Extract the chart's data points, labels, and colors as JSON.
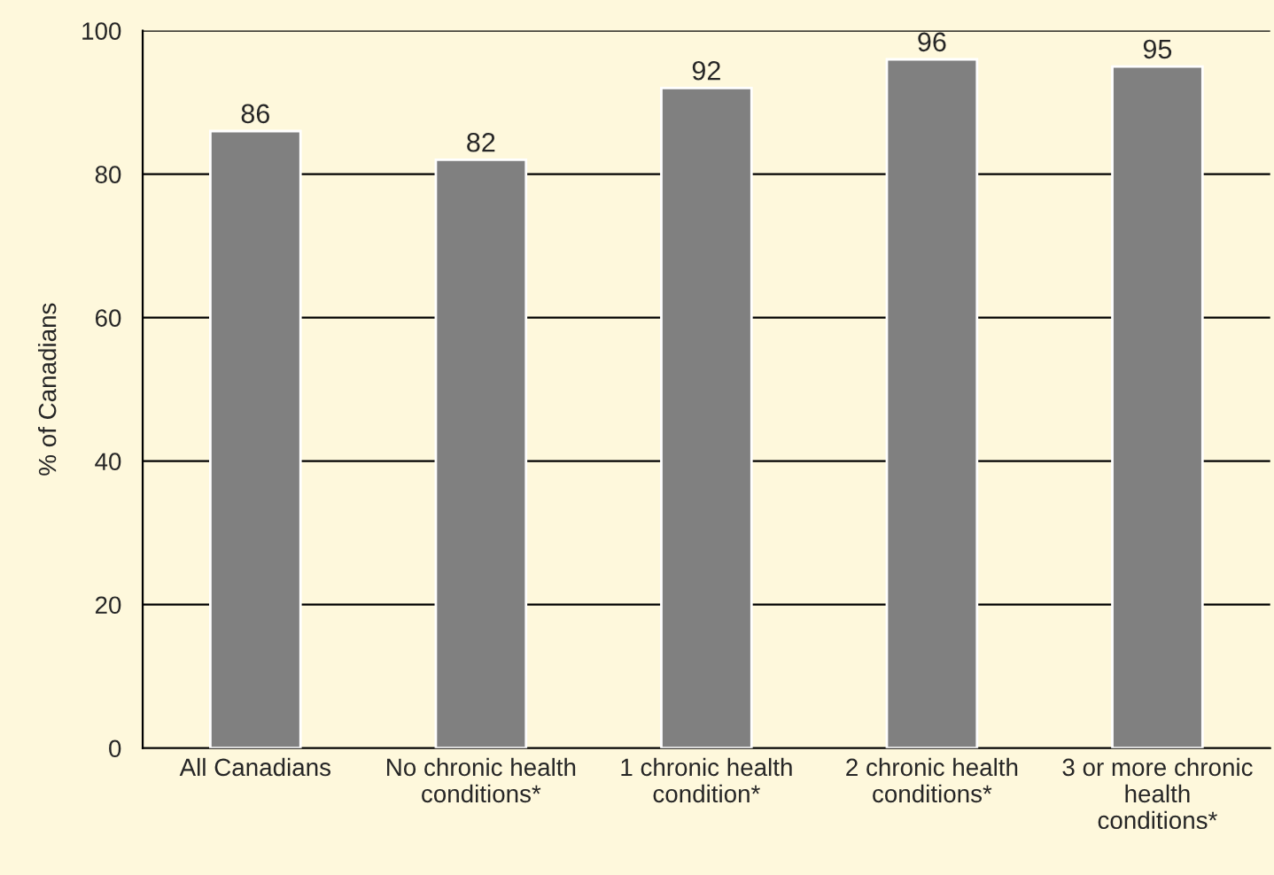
{
  "chart_data": {
    "type": "bar",
    "ylabel": "% of Canadians",
    "categories": [
      "All Canadians",
      "No chronic health\nconditions*",
      "1 chronic health\ncondition*",
      "2 chronic health\nconditions*",
      "3 or more chronic\nhealth\nconditions*"
    ],
    "values": [
      86,
      82,
      92,
      96,
      95
    ],
    "color": "#808080",
    "ylim": [
      0,
      100
    ],
    "yticks": [
      0,
      20,
      40,
      60,
      80,
      100
    ],
    "grid": "y",
    "data_labels": true,
    "legend": false
  }
}
